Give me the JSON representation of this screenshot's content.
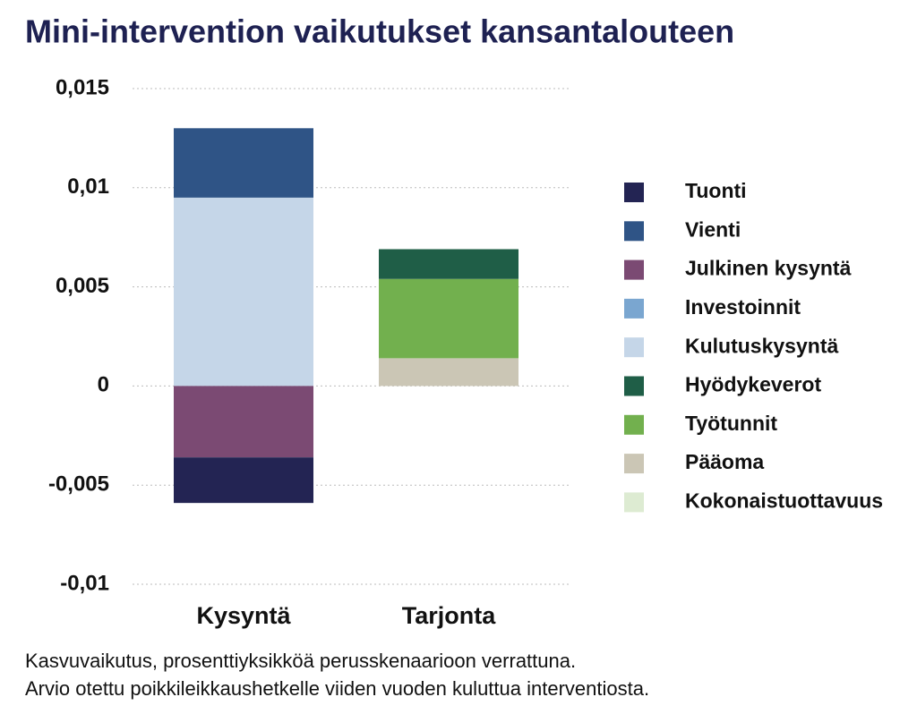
{
  "chart_data": {
    "type": "stacked_bar",
    "title": "Mini-intervention vaikutukset kansantalouteen",
    "categories": [
      "Kysyntä",
      "Tarjonta"
    ],
    "series": [
      {
        "name": "Tuonti",
        "color": "#232453",
        "values": [
          -0.0023,
          null
        ]
      },
      {
        "name": "Vienti",
        "color": "#2f5486",
        "values": [
          0.0035,
          null
        ]
      },
      {
        "name": "Julkinen kysyntä",
        "color": "#7b4a73",
        "values": [
          -0.0036,
          null
        ]
      },
      {
        "name": "Investoinnit",
        "color": "#7aa6d0",
        "values": [
          0,
          null
        ]
      },
      {
        "name": "Kulutuskysyntä",
        "color": "#c5d6e8",
        "values": [
          0.0095,
          null
        ]
      },
      {
        "name": "Hyödykeverot",
        "color": "#1f5e47",
        "values": [
          null,
          0.0015
        ]
      },
      {
        "name": "Työtunnit",
        "color": "#72b04e",
        "values": [
          null,
          0.004
        ]
      },
      {
        "name": "Pääoma",
        "color": "#cbc6b5",
        "values": [
          null,
          0.0014
        ]
      },
      {
        "name": "Kokonaistuottavuus",
        "color": "#ddebd2",
        "values": [
          null,
          0
        ]
      }
    ],
    "ylim": [
      -0.01,
      0.015
    ],
    "yticks": [
      {
        "value": 0.015,
        "label": "0,015"
      },
      {
        "value": 0.01,
        "label": "0,01"
      },
      {
        "value": 0.005,
        "label": "0,005"
      },
      0,
      {
        "value": -0.005,
        "label": "-0,005"
      },
      {
        "value": -0.01,
        "label": "-0,01"
      }
    ],
    "grid": true,
    "legend": "right",
    "note": [
      "Kasvuvaikutus, prosenttiyksikköä perusskenaarioon verrattuna.",
      "Arvio otettu poikkileikkaushetkelle viiden vuoden kuluttua interventiosta."
    ]
  }
}
